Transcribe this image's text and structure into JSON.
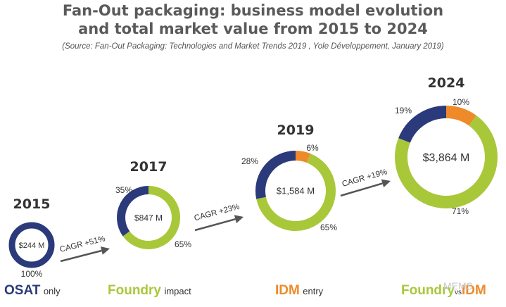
{
  "title_line1": "Fan-Out packaging: business model evolution",
  "title_line2": "and total market value from 2015 to 2024",
  "source": "(Source: Fan-Out Packaging: Technologies and Market Trends 2019 , Yole Développement, January 2019)",
  "colors": {
    "osat": "#2b3a7a",
    "foundry": "#a8c83a",
    "idm": "#ee8a2a"
  },
  "chart_data": {
    "type": "pie",
    "title": "Fan-Out packaging: business model evolution and total market value from 2015 to 2024",
    "charts": [
      {
        "year": "2015",
        "total": "$244 M",
        "slices": [
          {
            "name": "OSAT",
            "value": 100,
            "label": "100%"
          }
        ]
      },
      {
        "year": "2017",
        "total": "$847 M",
        "slices": [
          {
            "name": "Foundry",
            "value": 65,
            "label": "65%"
          },
          {
            "name": "OSAT",
            "value": 35,
            "label": "35%"
          }
        ]
      },
      {
        "year": "2019",
        "total": "$1,584 M",
        "slices": [
          {
            "name": "IDM",
            "value": 6,
            "label": "6%"
          },
          {
            "name": "Foundry",
            "value": 65,
            "label": "65%"
          },
          {
            "name": "OSAT",
            "value": 28,
            "label": "28%"
          }
        ]
      },
      {
        "year": "2024",
        "total": "$3,864 M",
        "slices": [
          {
            "name": "IDM",
            "value": 10,
            "label": "10%"
          },
          {
            "name": "Foundry",
            "value": 71,
            "label": "71%"
          },
          {
            "name": "OSAT",
            "value": 19,
            "label": "19%"
          }
        ]
      }
    ],
    "cagr": [
      "CAGR +51%",
      "CAGR +23%",
      "CAGR +19%"
    ]
  },
  "bottom_labels": {
    "osat": {
      "big": "OSAT",
      "small": "only"
    },
    "foundry": {
      "big": "Foundry",
      "small": "impact"
    },
    "idm": {
      "big": "IDM",
      "small": "entry"
    },
    "foundry_vs_idm": {
      "big1": "Foundry",
      "small": "vs",
      "big2": "IDM"
    }
  },
  "watermark": "MEMS"
}
